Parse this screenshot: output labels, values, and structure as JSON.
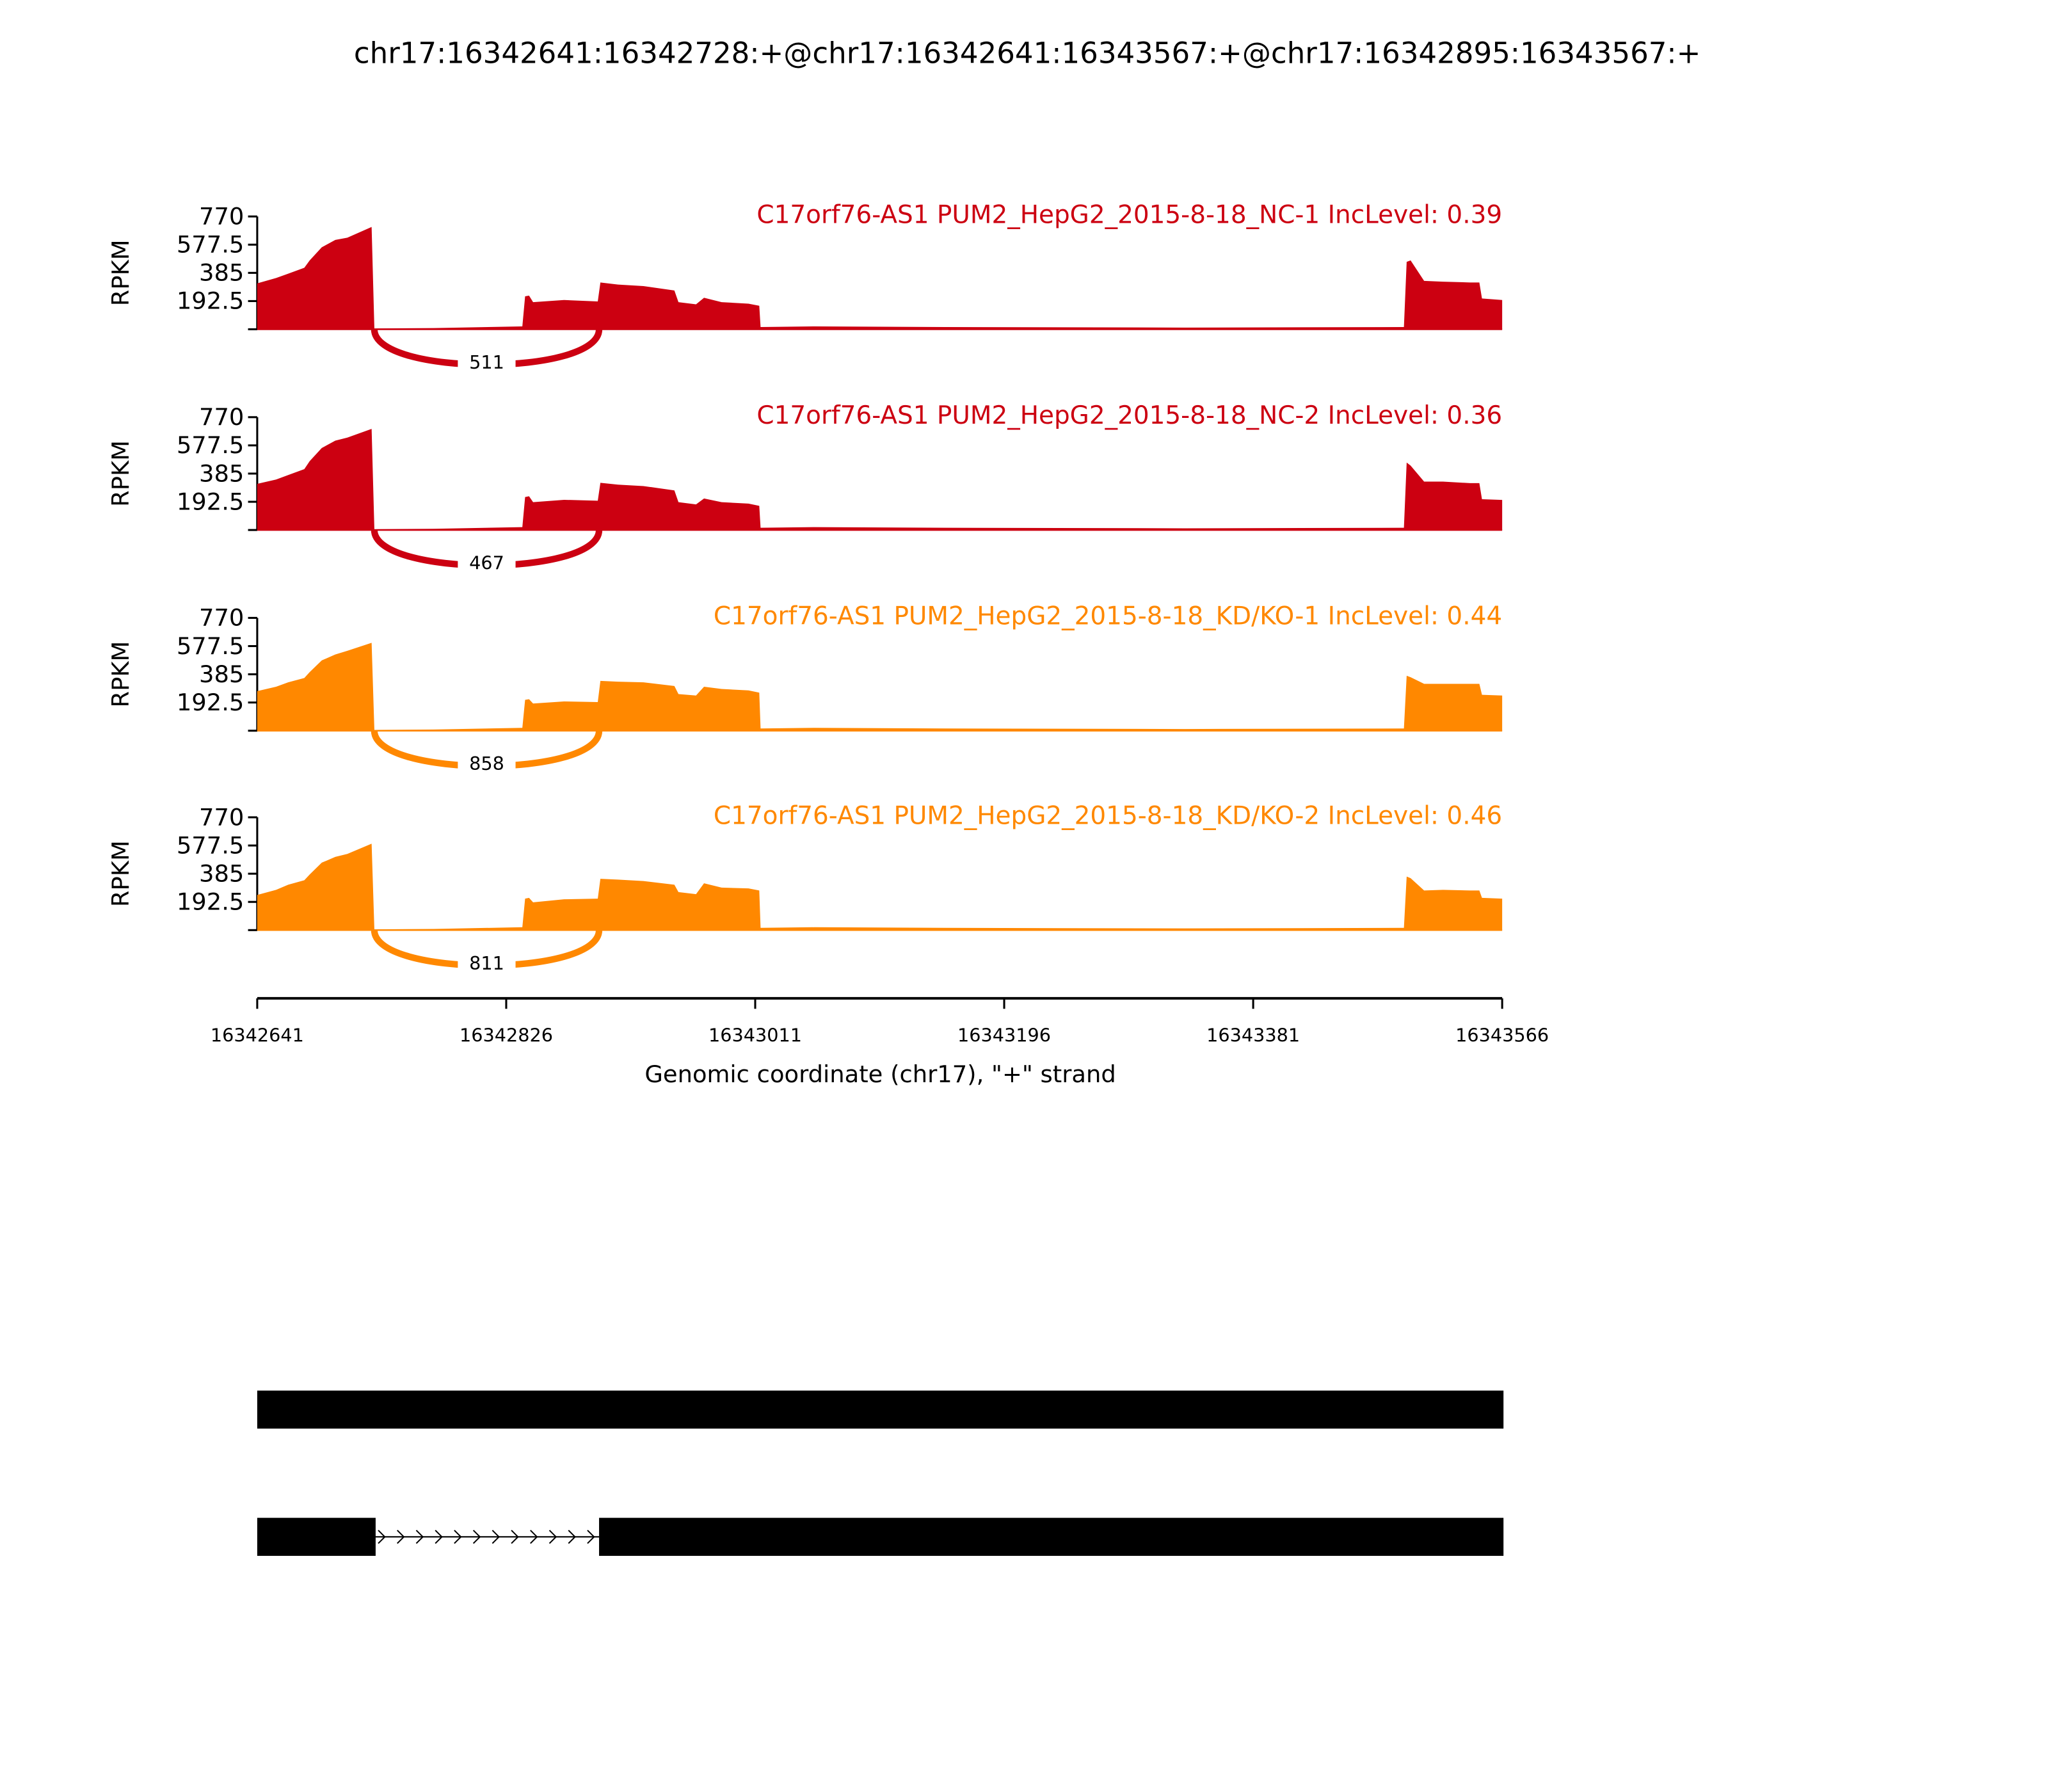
{
  "chart_data": {
    "type": "area",
    "title": "chr17:16342641:16342728:+@chr17:16342641:16343567:+@chr17:16342895:16343567:+",
    "xlabel": "Genomic coordinate (chr17), \"+\" strand",
    "ylabel": "RPKM",
    "xlim": [
      16342641,
      16343566
    ],
    "ylim": [
      0,
      770
    ],
    "x_ticks": [
      "16342641",
      "16342826",
      "16343011",
      "16343196",
      "16343381",
      "16343566"
    ],
    "y_ticks": [
      "192.5",
      "385",
      "577.5",
      "770"
    ],
    "x": [
      16342641,
      16342655,
      16342664,
      16342676,
      16342680,
      16342689,
      16342699,
      16342708,
      16342726,
      16342728,
      16342772,
      16342838,
      16342840,
      16342843,
      16342846,
      16342869,
      16342894,
      16342896,
      16342909,
      16342928,
      16342951,
      16342954,
      16342967,
      16342973,
      16342986,
      16343006,
      16343014,
      16343015,
      16343055,
      16343152,
      16343330,
      16343493,
      16343495,
      16343498,
      16343508,
      16343522,
      16343542,
      16343549,
      16343551,
      16343566
    ],
    "series": [
      {
        "name": "C17orf76-AS1 PUM2_HepG2_2015-8-18_NC-1 IncLevel: 0.39",
        "color": "#cc0011",
        "values": [
          313,
          350,
          380,
          420,
          470,
          560,
          610,
          625,
          698,
          5,
          8,
          20,
          225,
          230,
          185,
          200,
          190,
          320,
          305,
          295,
          265,
          185,
          170,
          215,
          185,
          175,
          160,
          15,
          20,
          15,
          12,
          15,
          460,
          470,
          330,
          325,
          320,
          320,
          210,
          200
        ],
        "junction": {
          "start": 16342728,
          "end": 16342895,
          "count": "511"
        }
      },
      {
        "name": "C17orf76-AS1 PUM2_HepG2_2015-8-18_NC-2 IncLevel: 0.36",
        "color": "#cc0011",
        "values": [
          315,
          345,
          375,
          415,
          470,
          560,
          610,
          630,
          690,
          5,
          8,
          20,
          225,
          230,
          190,
          206,
          200,
          322,
          310,
          300,
          270,
          190,
          175,
          215,
          190,
          180,
          165,
          15,
          20,
          15,
          12,
          15,
          460,
          440,
          330,
          330,
          320,
          320,
          210,
          205
        ],
        "junction": {
          "start": 16342728,
          "end": 16342895,
          "count": "467"
        }
      },
      {
        "name": "C17orf76-AS1 PUM2_HepG2_2015-8-18_KD/KO-1 IncLevel: 0.44",
        "color": "#ff8800",
        "values": [
          270,
          300,
          330,
          360,
          400,
          480,
          520,
          545,
          600,
          5,
          8,
          20,
          210,
          215,
          185,
          200,
          195,
          340,
          335,
          330,
          305,
          250,
          240,
          300,
          285,
          275,
          260,
          15,
          20,
          15,
          12,
          15,
          375,
          365,
          320,
          320,
          320,
          320,
          245,
          240
        ],
        "junction": {
          "start": 16342728,
          "end": 16342895,
          "count": "858"
        }
      },
      {
        "name": "C17orf76-AS1 PUM2_HepG2_2015-8-18_KD/KO-2 IncLevel: 0.46",
        "color": "#ff8800",
        "values": [
          240,
          275,
          310,
          340,
          380,
          460,
          500,
          520,
          590,
          5,
          8,
          20,
          215,
          220,
          190,
          210,
          215,
          350,
          345,
          335,
          310,
          260,
          245,
          320,
          290,
          285,
          270,
          15,
          20,
          15,
          12,
          15,
          365,
          355,
          270,
          275,
          270,
          270,
          220,
          215
        ],
        "junction": {
          "start": 16342728,
          "end": 16342895,
          "count": "811"
        }
      }
    ],
    "transcripts": [
      {
        "exons": [
          [
            16342641,
            16343566
          ]
        ]
      },
      {
        "exons": [
          [
            16342641,
            16342728
          ],
          [
            16342895,
            16343566
          ]
        ]
      }
    ]
  }
}
